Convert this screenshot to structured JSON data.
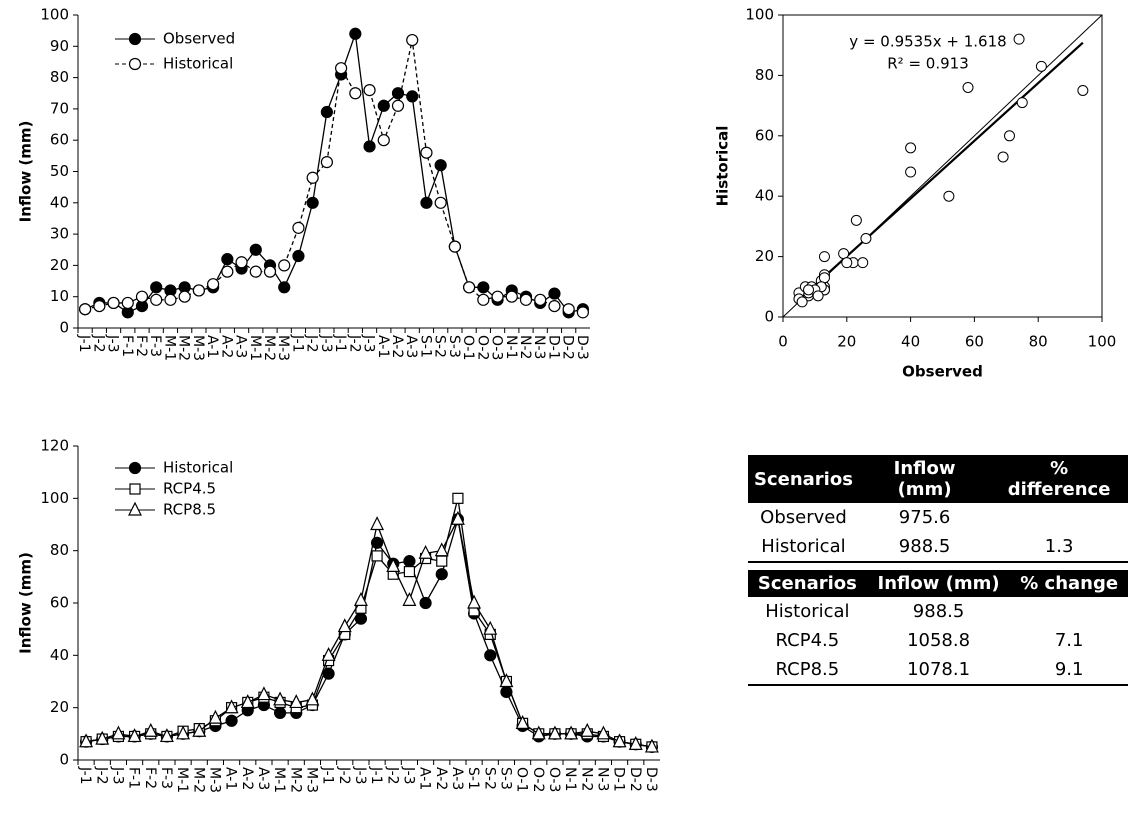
{
  "chart_data": [
    {
      "type": "line",
      "y_title": "Inflow (mm)",
      "legend": "upper-left",
      "categories": [
        "J-1",
        "J-2",
        "J-3",
        "F-1",
        "F-2",
        "F-3",
        "M-1",
        "M-2",
        "M-3",
        "A-1",
        "A-2",
        "A-3",
        "M-1",
        "M-2",
        "M-3",
        "J-1",
        "J-2",
        "J-3",
        "J-1",
        "J-2",
        "J-3",
        "A-1",
        "A-2",
        "A-3",
        "S-1",
        "S-2",
        "S-3",
        "O-1",
        "O-2",
        "O-3",
        "N-1",
        "N-2",
        "N-3",
        "D-1",
        "D-2",
        "D-3"
      ],
      "ylim": [
        0,
        100
      ],
      "yticks": [
        0,
        10,
        20,
        30,
        40,
        50,
        60,
        70,
        80,
        90,
        100
      ],
      "series": [
        {
          "name": "Observed",
          "color": "#000000",
          "marker": "circle-filled",
          "dash": false,
          "values": [
            6,
            8,
            8,
            5,
            7,
            13,
            12,
            13,
            12,
            13,
            22,
            19,
            25,
            20,
            13,
            23,
            40,
            69,
            81,
            94,
            58,
            71,
            75,
            74,
            40,
            52,
            26,
            13,
            13,
            9,
            12,
            10,
            8,
            11,
            5,
            6
          ]
        },
        {
          "name": "Historical",
          "color": "#000000",
          "marker": "circle-open",
          "dash": true,
          "values": [
            6,
            7,
            8,
            8,
            10,
            9,
            9,
            10,
            12,
            14,
            18,
            21,
            18,
            18,
            20,
            32,
            48,
            53,
            83,
            75,
            76,
            60,
            71,
            92,
            56,
            40,
            26,
            13,
            9,
            10,
            10,
            9,
            9,
            7,
            6,
            5
          ]
        }
      ]
    },
    {
      "type": "scatter",
      "x_title": "Observed",
      "y_title": "Historical",
      "annotations": [
        "y = 0.9535x + 1.618",
        "R² = 0.913"
      ],
      "xlim": [
        0,
        100
      ],
      "xticks": [
        0,
        20,
        40,
        60,
        80,
        100
      ],
      "ylim": [
        0,
        100
      ],
      "yticks": [
        0,
        20,
        40,
        60,
        80,
        100
      ],
      "x": [
        6,
        8,
        8,
        5,
        7,
        13,
        12,
        13,
        12,
        13,
        22,
        19,
        25,
        20,
        13,
        23,
        40,
        69,
        81,
        94,
        58,
        71,
        75,
        74,
        40,
        52,
        26,
        13,
        13,
        9,
        12,
        10,
        8,
        11,
        5,
        6
      ],
      "values": [
        6,
        7,
        8,
        8,
        10,
        9,
        9,
        10,
        12,
        14,
        18,
        21,
        18,
        18,
        20,
        32,
        48,
        53,
        83,
        75,
        76,
        60,
        71,
        92,
        56,
        40,
        26,
        13,
        9,
        10,
        10,
        9,
        9,
        7,
        6,
        5
      ],
      "color": "#000000"
    },
    {
      "type": "line",
      "y_title": "Inflow (mm)",
      "legend": "upper-left",
      "categories": [
        "J-1",
        "J-2",
        "J-3",
        "F-1",
        "F-2",
        "F-3",
        "M-1",
        "M-2",
        "M-3",
        "A-1",
        "A-2",
        "A-3",
        "M-1",
        "M-2",
        "M-3",
        "J-1",
        "J-2",
        "J-3",
        "J-1",
        "J-2",
        "J-3",
        "A-1",
        "A-2",
        "A-3",
        "S-1",
        "S-2",
        "S-3",
        "O-1",
        "O-2",
        "O-3",
        "N-1",
        "N-2",
        "N-3",
        "D-1",
        "D-2",
        "D-3"
      ],
      "ylim": [
        0,
        120
      ],
      "yticks": [
        0,
        20,
        40,
        60,
        80,
        100,
        120
      ],
      "series": [
        {
          "name": "Historical",
          "color": "#000000",
          "marker": "circle-filled",
          "dash": false,
          "values": [
            7,
            8,
            9,
            9,
            10,
            9,
            10,
            11,
            13,
            15,
            19,
            21,
            18,
            18,
            21,
            33,
            48,
            54,
            83,
            75,
            76,
            60,
            71,
            92,
            56,
            40,
            26,
            13,
            9,
            10,
            10,
            9,
            9,
            7,
            6,
            5
          ]
        },
        {
          "name": "RCP4.5",
          "color": "#000000",
          "marker": "square-open",
          "dash": false,
          "values": [
            7,
            8,
            9,
            9,
            10,
            9,
            11,
            12,
            15,
            20,
            22,
            24,
            22,
            20,
            21,
            38,
            48,
            58,
            78,
            71,
            72,
            77,
            76,
            100,
            57,
            48,
            30,
            14,
            10,
            10,
            10,
            10,
            9,
            7,
            6,
            5
          ]
        },
        {
          "name": "RCP8.5",
          "color": "#000000",
          "marker": "triangle-open",
          "dash": false,
          "values": [
            7,
            8,
            10,
            9,
            11,
            9,
            10,
            11,
            16,
            20,
            22,
            25,
            23,
            22,
            23,
            40,
            51,
            61,
            90,
            74,
            61,
            79,
            80,
            92,
            60,
            50,
            30,
            14,
            10,
            10,
            10,
            11,
            10,
            7,
            6,
            5
          ]
        }
      ]
    }
  ],
  "tables": [
    {
      "headers": [
        "Scenarios",
        "Inflow (mm)",
        "% difference"
      ],
      "rows": [
        [
          "Observed",
          "975.6"
        ],
        [
          "Historical",
          "988.5",
          "1.3"
        ]
      ]
    },
    {
      "headers": [
        "Scenarios",
        "Inflow (mm)",
        "% change"
      ],
      "rows": [
        [
          "Historical",
          "988.5"
        ],
        [
          "RCP4.5",
          "1058.8",
          "7.1"
        ],
        [
          "RCP8.5",
          "1078.1",
          "9.1"
        ]
      ]
    }
  ]
}
